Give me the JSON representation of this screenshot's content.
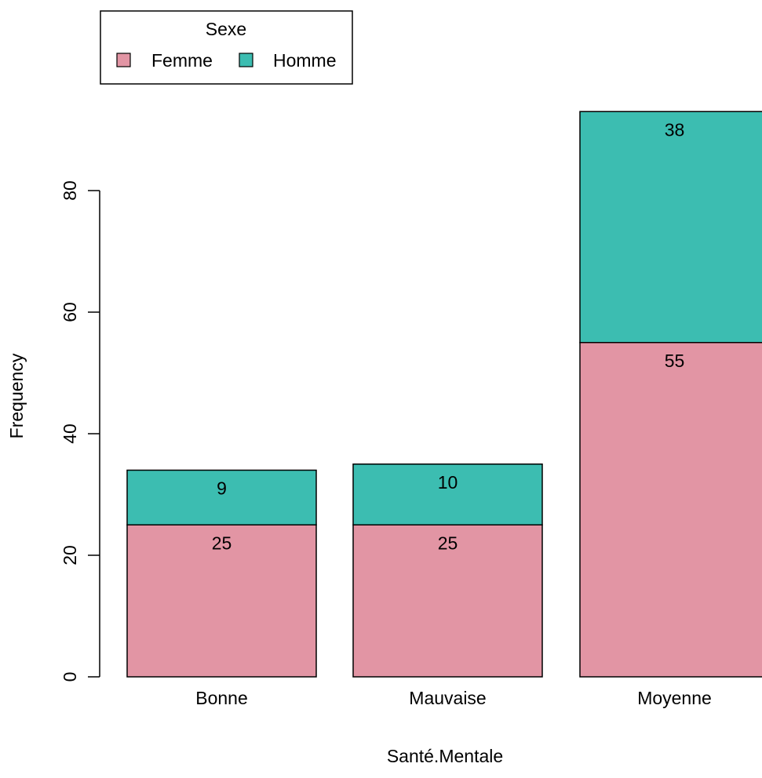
{
  "chart_data": {
    "type": "bar",
    "stacked": true,
    "title": "",
    "xlabel": "Santé.Mentale",
    "ylabel": "Frequency",
    "categories": [
      "Bonne",
      "Mauvaise",
      "Moyenne"
    ],
    "series": [
      {
        "name": "Femme",
        "values": [
          25,
          25,
          55
        ],
        "color": "#E295A4"
      },
      {
        "name": "Homme",
        "values": [
          9,
          10,
          38
        ],
        "color": "#3CBDB1"
      }
    ],
    "yticks": [
      0,
      20,
      40,
      60,
      80
    ],
    "ylim": [
      0,
      93
    ],
    "grid": false,
    "legend": {
      "title": "Sexe",
      "placement": "top-left",
      "entries": [
        "Femme",
        "Homme"
      ]
    }
  }
}
